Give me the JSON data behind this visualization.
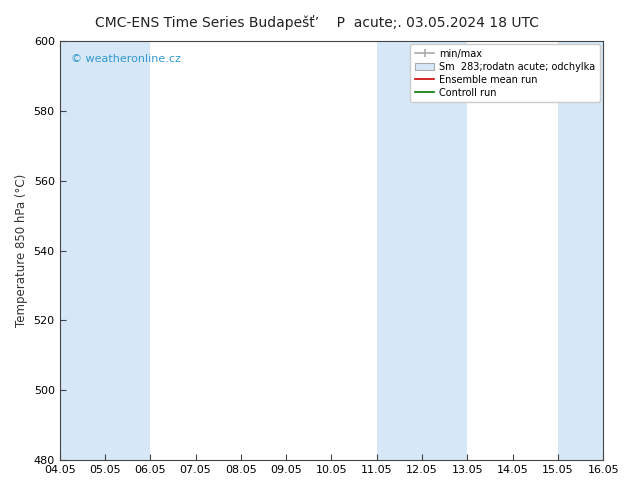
{
  "title": "CMC-ENS Time Series Budapešť’    P  acute;. 03.05.2024 18 UTC",
  "ylabel": "Temperature 850 hPa (°C)",
  "ylim": [
    480,
    600
  ],
  "yticks": [
    480,
    500,
    520,
    540,
    560,
    580,
    600
  ],
  "xlabels": [
    "04.05",
    "05.05",
    "06.05",
    "07.05",
    "08.05",
    "09.05",
    "10.05",
    "11.05",
    "12.05",
    "13.05",
    "14.05",
    "15.05",
    "16.05"
  ],
  "bg_color": "#ffffff",
  "plot_bg_color": "#ffffff",
  "band_color": "#d6e8f7",
  "watermark": "© weatheronline.cz",
  "watermark_color": "#3399cc",
  "legend_entries": [
    "min/max",
    "Sm  283;rodatn acute; odchylka",
    "Ensemble mean run",
    "Controll run"
  ],
  "legend_line_color": "#aaaaaa",
  "legend_fill_color": "#d6e8f7",
  "legend_red": "#cc0000",
  "legend_green": "#007700",
  "title_fontsize": 10,
  "axis_fontsize": 8.5,
  "tick_fontsize": 8,
  "spine_color": "#444444",
  "tick_color": "#444444"
}
